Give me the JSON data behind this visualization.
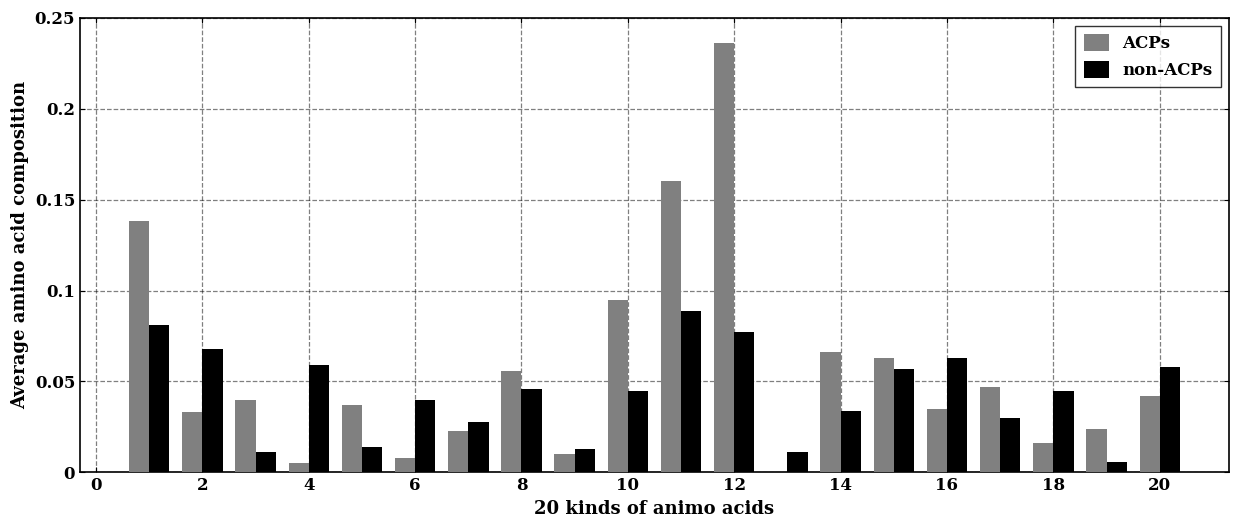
{
  "categories": [
    1,
    2,
    3,
    4,
    5,
    6,
    7,
    8,
    9,
    10,
    11,
    12,
    13,
    14,
    15,
    16,
    17,
    18,
    19,
    20
  ],
  "acps": [
    0.138,
    0.033,
    0.04,
    0.005,
    0.037,
    0.008,
    0.023,
    0.056,
    0.01,
    0.095,
    0.16,
    0.236,
    0.0,
    0.066,
    0.063,
    0.035,
    0.047,
    0.016,
    0.024,
    0.042
  ],
  "non_acps": [
    0.081,
    0.068,
    0.011,
    0.059,
    0.014,
    0.04,
    0.028,
    0.046,
    0.013,
    0.045,
    0.089,
    0.077,
    0.011,
    0.034,
    0.057,
    0.063,
    0.03,
    0.045,
    0.006,
    0.058
  ],
  "acp_color": "#808080",
  "nonacp_color": "#000000",
  "ylabel": "Average amino acid composition",
  "xlabel": "20 kinds of animo acids",
  "ylim": [
    0,
    0.25
  ],
  "yticks": [
    0,
    0.05,
    0.1,
    0.15,
    0.2,
    0.25
  ],
  "xticks": [
    0,
    2,
    4,
    6,
    8,
    10,
    12,
    14,
    16,
    18,
    20
  ],
  "legend_labels": [
    "ACPs",
    "non-ACPs"
  ],
  "bar_width": 0.38,
  "background_color": "#ffffff",
  "grid_color": "#000000",
  "grid_style": "--",
  "grid_alpha": 0.5
}
